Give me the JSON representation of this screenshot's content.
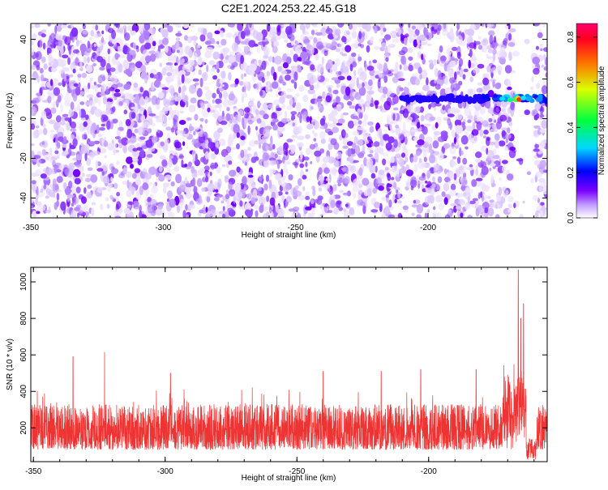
{
  "title": "C2E1.2024.253.22.45.G18",
  "chart_data": [
    {
      "type": "heatmap",
      "xlabel": "Height of straight line (km)",
      "ylabel": "Frequency (Hz)",
      "xlim": [
        -350,
        -155
      ],
      "ylim": [
        -50,
        48
      ],
      "x_ticks": [
        "-350",
        "-300",
        "-250",
        "-200"
      ],
      "y_ticks": [
        "40",
        "20",
        "0",
        "-20",
        "-40"
      ],
      "grid": false,
      "colorbar": {
        "label": "Normalized spectral amplitude",
        "range": [
          0,
          0.86
        ],
        "ticks": [
          "0.0",
          "0.2",
          "0.4",
          "0.6",
          "0.8"
        ]
      },
      "features": [
        {
          "name": "signal track",
          "x_range": [
            -210,
            -155
          ],
          "frequency_hz": 10,
          "peak_amplitude": 0.86,
          "peak_x": -166
        }
      ]
    },
    {
      "type": "line",
      "xlabel": "Height of straight line (km)",
      "ylabel": "SNR (10 * v/v)",
      "xlim": [
        -351,
        -155
      ],
      "ylim": [
        15,
        1080
      ],
      "x_ticks": [
        "-350",
        "-300",
        "-250",
        "-200"
      ],
      "y_ticks": [
        "1000",
        "800",
        "600",
        "400",
        "200"
      ],
      "grid": false,
      "series": [
        {
          "color": "#ee3333",
          "baseline_range": [
            80,
            330
          ],
          "spikes": [
            {
              "x": -335,
              "y": 590
            },
            {
              "x": -323,
              "y": 615
            },
            {
              "x": -298,
              "y": 500
            },
            {
              "x": -240,
              "y": 510
            },
            {
              "x": -218,
              "y": 510
            },
            {
              "x": -203,
              "y": 520
            },
            {
              "x": -182,
              "y": 520
            },
            {
              "x": -166,
              "y": 1065
            },
            {
              "x": -164,
              "y": 880
            },
            {
              "x": -165,
              "y": 800
            }
          ]
        }
      ]
    }
  ]
}
